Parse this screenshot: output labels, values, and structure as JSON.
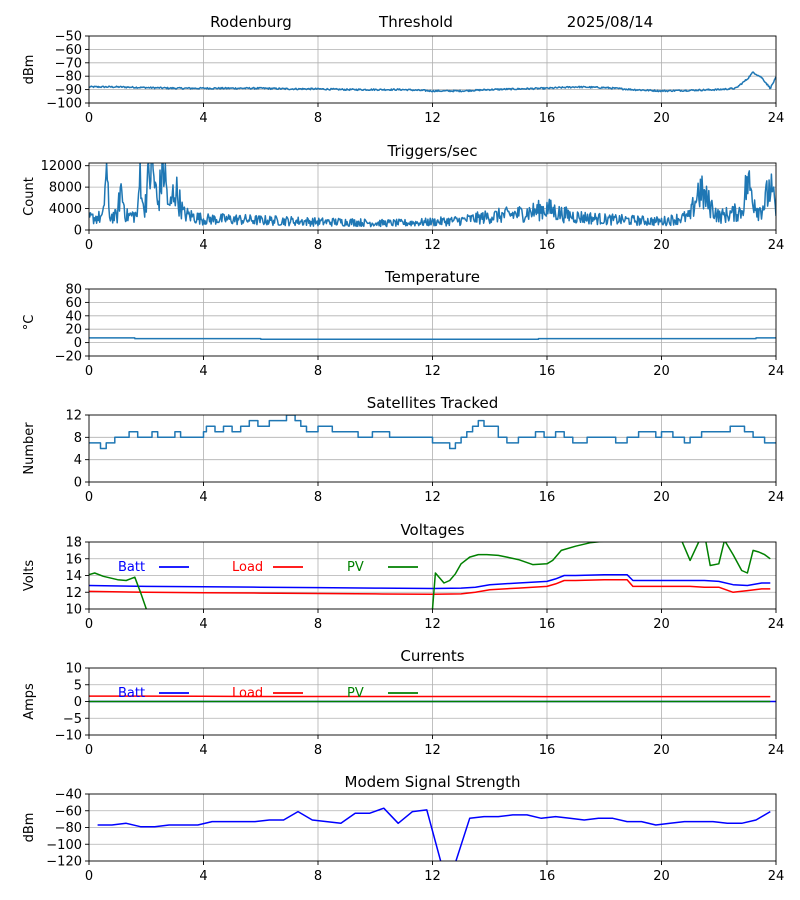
{
  "header": {
    "station": "Rodenburg",
    "mode": "Threshold",
    "date": "2025/08/14"
  },
  "chart_data": [
    {
      "id": "signal",
      "type": "line",
      "title": "",
      "ylabel": "dBm",
      "xlim": [
        0,
        24
      ],
      "ylim": [
        -100,
        -50
      ],
      "xticks": [
        0,
        4,
        8,
        12,
        16,
        20,
        24
      ],
      "yticks": [
        -100,
        -90,
        -80,
        -70,
        -60,
        -50
      ],
      "grid": true,
      "series": [
        {
          "color": "#1f77b4",
          "noise": 0.6,
          "x": [
            0,
            1,
            2,
            3,
            4,
            5,
            6,
            7,
            8,
            9,
            10,
            11,
            12,
            13,
            14,
            15,
            16,
            17,
            18,
            19,
            20,
            21,
            22,
            22.6,
            23,
            23.2,
            23.5,
            23.8,
            24
          ],
          "y": [
            -88,
            -88,
            -88.5,
            -89,
            -89,
            -89,
            -89,
            -89.5,
            -89.5,
            -90,
            -90,
            -90,
            -91,
            -91,
            -90,
            -89.5,
            -89,
            -88,
            -88.5,
            -90,
            -91,
            -90.5,
            -90,
            -89,
            -82,
            -77,
            -81,
            -89,
            -81
          ]
        }
      ]
    },
    {
      "id": "triggers",
      "type": "line",
      "title": "Triggers/sec",
      "ylabel": "Count",
      "xlim": [
        0,
        24
      ],
      "ylim": [
        0,
        12500
      ],
      "xticks": [
        0,
        4,
        8,
        12,
        16,
        20,
        24
      ],
      "yticks": [
        0,
        4000,
        8000,
        12000
      ],
      "grid": true,
      "series": [
        {
          "color": "#1f77b4",
          "noise": 1600,
          "x": [
            0,
            0.5,
            0.6,
            0.7,
            1.0,
            1.1,
            1.3,
            1.7,
            1.8,
            1.9,
            2.0,
            2.2,
            2.4,
            2.6,
            2.8,
            3.0,
            3.3,
            4.0,
            5.0,
            6.0,
            7.0,
            8.0,
            9.0,
            10.0,
            11.0,
            12.0,
            13.0,
            14.0,
            15.0,
            15.6,
            16.0,
            16.5,
            17.0,
            18.0,
            19.0,
            20.0,
            21.0,
            21.3,
            22.0,
            22.8,
            23.0,
            23.4,
            23.6,
            23.8,
            24.0
          ],
          "y": [
            2200,
            2400,
            12500,
            2600,
            2500,
            8000,
            2600,
            2800,
            12500,
            3000,
            7000,
            12500,
            4500,
            12500,
            3500,
            8000,
            3000,
            2000,
            2000,
            1800,
            1700,
            1500,
            1500,
            1300,
            1300,
            1500,
            1800,
            2500,
            3000,
            3500,
            4000,
            3000,
            2500,
            2000,
            1800,
            1600,
            2500,
            7500,
            2500,
            3500,
            9000,
            3500,
            5000,
            8000,
            3500
          ]
        }
      ]
    },
    {
      "id": "temperature",
      "type": "line",
      "title": "Temperature",
      "ylabel": "°C",
      "xlim": [
        0,
        24
      ],
      "ylim": [
        -20,
        80
      ],
      "xticks": [
        0,
        4,
        8,
        12,
        16,
        20,
        24
      ],
      "yticks": [
        -20,
        0,
        20,
        40,
        60,
        80
      ],
      "grid": true,
      "step": true,
      "series": [
        {
          "color": "#1f77b4",
          "x": [
            0,
            1.6,
            6.0,
            13.9,
            15.7,
            23.3,
            24
          ],
          "y": [
            7,
            6,
            5,
            5,
            6,
            7,
            6
          ]
        }
      ]
    },
    {
      "id": "satellites",
      "type": "line",
      "title": "Satellites Tracked",
      "ylabel": "Number",
      "xlim": [
        0,
        24
      ],
      "ylim": [
        0,
        12
      ],
      "xticks": [
        0,
        4,
        8,
        12,
        16,
        20,
        24
      ],
      "yticks": [
        0,
        4,
        8,
        12
      ],
      "grid": true,
      "step": true,
      "series": [
        {
          "color": "#1f77b4",
          "x": [
            0,
            0.4,
            0.6,
            0.9,
            1.4,
            1.7,
            2.2,
            2.4,
            3.0,
            3.2,
            4.0,
            4.1,
            4.4,
            4.7,
            5.0,
            5.3,
            5.6,
            5.9,
            6.3,
            6.9,
            7.2,
            7.4,
            7.6,
            8.0,
            8.5,
            9.2,
            9.4,
            9.9,
            10.0,
            10.5,
            11.0,
            11.3,
            11.6,
            12.0,
            12.6,
            12.8,
            13.0,
            13.2,
            13.4,
            13.6,
            13.8,
            14.3,
            14.6,
            15.0,
            15.3,
            15.6,
            15.9,
            16.3,
            16.6,
            16.9,
            17.4,
            17.6,
            18.0,
            18.4,
            18.8,
            19.2,
            19.8,
            20.0,
            20.4,
            20.8,
            21.0,
            21.4,
            21.7,
            22.4,
            22.9,
            23.2,
            23.4,
            23.6,
            24.0
          ],
          "y": [
            7,
            6,
            7,
            8,
            9,
            8,
            9,
            8,
            9,
            8,
            9,
            10,
            9,
            10,
            9,
            10,
            11,
            10,
            11,
            12,
            11,
            10,
            9,
            10,
            9,
            9,
            8,
            9,
            9,
            8,
            8,
            8,
            8,
            7,
            6,
            7,
            8,
            9,
            10,
            11,
            10,
            8,
            7,
            8,
            8,
            9,
            8,
            9,
            8,
            7,
            8,
            8,
            8,
            7,
            8,
            9,
            8,
            9,
            8,
            7,
            8,
            9,
            9,
            10,
            9,
            8,
            8,
            7,
            7
          ]
        }
      ]
    },
    {
      "id": "voltages",
      "type": "line",
      "title": "Voltages",
      "ylabel": "Volts",
      "xlim": [
        0,
        24
      ],
      "ylim": [
        10,
        18
      ],
      "xticks": [
        0,
        4,
        8,
        12,
        16,
        20,
        24
      ],
      "yticks": [
        10,
        12,
        14,
        16,
        18
      ],
      "grid": true,
      "legend": [
        "Batt",
        "Load",
        "PV"
      ],
      "series": [
        {
          "name": "Batt",
          "color": "#0000ff",
          "x": [
            0,
            2,
            4,
            6,
            8,
            10,
            12,
            13,
            13.5,
            14,
            15,
            16,
            16.3,
            16.6,
            17,
            18,
            18.8,
            19,
            20,
            21,
            21.5,
            22,
            22.5,
            23,
            23.5,
            23.8
          ],
          "y": [
            12.8,
            12.7,
            12.65,
            12.6,
            12.55,
            12.5,
            12.45,
            12.5,
            12.6,
            12.9,
            13.1,
            13.3,
            13.6,
            14.0,
            14.0,
            14.1,
            14.1,
            13.4,
            13.4,
            13.4,
            13.4,
            13.3,
            12.9,
            12.8,
            13.1,
            13.1
          ]
        },
        {
          "name": "Load",
          "color": "#ff0000",
          "x": [
            0,
            2,
            4,
            6,
            8,
            10,
            12,
            13,
            13.5,
            14,
            15,
            16,
            16.3,
            16.6,
            17,
            18,
            18.8,
            19,
            20,
            21,
            21.5,
            22,
            22.5,
            23,
            23.5,
            23.8
          ],
          "y": [
            12.1,
            12.0,
            11.95,
            11.9,
            11.85,
            11.8,
            11.75,
            11.8,
            12.0,
            12.3,
            12.5,
            12.7,
            13.0,
            13.4,
            13.4,
            13.5,
            13.5,
            12.7,
            12.7,
            12.7,
            12.6,
            12.6,
            12.0,
            12.2,
            12.4,
            12.4
          ]
        },
        {
          "name": "PV",
          "color": "#008000",
          "x": [
            0,
            0.2,
            0.5,
            1.0,
            1.3,
            1.6,
            1.8,
            2.0,
            2.0,
            12.0,
            12.1,
            12.4,
            12.6,
            12.8,
            13.0,
            13.3,
            13.6,
            13.9,
            14.3,
            14.6,
            15.0,
            15.5,
            16.0,
            16.2,
            16.5,
            17.0,
            17.5,
            18.0,
            18.5,
            19.0,
            19.5,
            20.0,
            20.5,
            20.7,
            21.0,
            21.3,
            21.5,
            21.7,
            22.0,
            22.2,
            22.5,
            22.8,
            23.0,
            23.2,
            23.4,
            23.6,
            23.8
          ],
          "y": [
            14.1,
            14.3,
            13.9,
            13.5,
            13.4,
            13.8,
            12.0,
            10.0,
            null,
            10.0,
            14.3,
            13.1,
            13.4,
            14.2,
            15.4,
            16.2,
            16.5,
            16.5,
            16.4,
            16.2,
            15.9,
            15.3,
            15.4,
            15.8,
            17.0,
            17.5,
            17.9,
            18.1,
            18.3,
            18.4,
            18.4,
            18.6,
            18.4,
            18.2,
            15.8,
            18.0,
            19.0,
            15.2,
            15.4,
            18.2,
            16.5,
            14.6,
            14.3,
            17.0,
            16.8,
            16.5,
            16.0
          ]
        }
      ]
    },
    {
      "id": "currents",
      "type": "line",
      "title": "Currents",
      "ylabel": "Amps",
      "xlim": [
        0,
        24
      ],
      "ylim": [
        -10,
        10
      ],
      "xticks": [
        0,
        4,
        8,
        12,
        16,
        20,
        24
      ],
      "yticks": [
        -10,
        -5,
        0,
        5,
        10
      ],
      "grid": true,
      "legend": [
        "Batt",
        "Load",
        "PV"
      ],
      "series": [
        {
          "name": "Batt",
          "color": "#0000ff",
          "x": [
            0,
            24
          ],
          "y": [
            0,
            0
          ]
        },
        {
          "name": "Load",
          "color": "#ff0000",
          "x": [
            0,
            2,
            4,
            6,
            8,
            10,
            12,
            14,
            16,
            18,
            20,
            22,
            23.8
          ],
          "y": [
            1.6,
            1.6,
            1.55,
            1.5,
            1.5,
            1.5,
            1.5,
            1.5,
            1.45,
            1.45,
            1.45,
            1.45,
            1.45
          ]
        },
        {
          "name": "PV",
          "color": "#008000",
          "x": [
            0,
            23.8
          ],
          "y": [
            0,
            0
          ]
        }
      ]
    },
    {
      "id": "modem",
      "type": "line",
      "title": "Modem Signal Strength",
      "ylabel": "dBm",
      "xlim": [
        0,
        24
      ],
      "ylim": [
        -120,
        -40
      ],
      "xticks": [
        0,
        4,
        8,
        12,
        16,
        20,
        24
      ],
      "yticks": [
        -120,
        -100,
        -80,
        -60,
        -40
      ],
      "grid": true,
      "series": [
        {
          "color": "#0000ff",
          "x": [
            0.3,
            0.8,
            1.3,
            1.8,
            2.3,
            2.8,
            3.3,
            3.8,
            4.3,
            4.8,
            5.3,
            5.8,
            6.3,
            6.8,
            7.3,
            7.8,
            8.3,
            8.8,
            9.3,
            9.8,
            10.3,
            10.8,
            11.3,
            11.8,
            12.3,
            12.8,
            13.3,
            13.8,
            14.3,
            14.8,
            15.3,
            15.8,
            16.3,
            16.8,
            17.3,
            17.8,
            18.3,
            18.8,
            19.3,
            19.8,
            20.3,
            20.8,
            21.3,
            21.8,
            22.3,
            22.8,
            23.3,
            23.8
          ],
          "y": [
            -77,
            -77,
            -75,
            -79,
            -79,
            -77,
            -77,
            -77,
            -73,
            -73,
            -73,
            -73,
            -71,
            -71,
            -61,
            -71,
            -73,
            -75,
            -63,
            -63,
            -57,
            -75,
            -61,
            -59,
            -122,
            -122,
            -69,
            -67,
            -67,
            -65,
            -65,
            -69,
            -67,
            -69,
            -71,
            -69,
            -69,
            -73,
            -73,
            -77,
            -75,
            -73,
            -73,
            -73,
            -75,
            -75,
            -71,
            -61
          ]
        }
      ]
    }
  ]
}
